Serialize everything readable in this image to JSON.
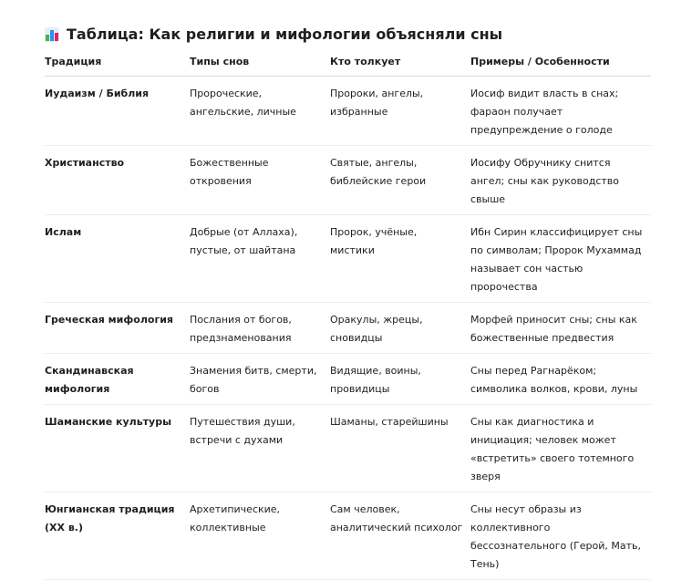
{
  "title": "Таблица: Как религии и мифологии объясняли сны",
  "title_icon": "bar-chart-icon",
  "columns": [
    "Традиция",
    "Типы снов",
    "Кто толкует",
    "Примеры / Особенности"
  ],
  "rows": [
    [
      "Иудаизм / Библия",
      "Пророческие, ангельские, личные",
      "Пророки, ангелы, избранные",
      "Иосиф видит власть в снах; фараон получает предупреждение о голоде"
    ],
    [
      "Христианство",
      "Божественные откровения",
      "Святые, ангелы, библейские герои",
      "Иосифу Обручнику снится ангел; сны как руководство свыше"
    ],
    [
      "Ислам",
      "Добрые (от Аллаха), пустые, от шайтана",
      "Пророк, учёные, мистики",
      "Ибн Сирин классифицирует сны по символам; Пророк Мухаммад называет сон частью пророчества"
    ],
    [
      "Греческая мифология",
      "Послания от богов, предзнаменования",
      "Оракулы, жрецы, сновидцы",
      "Морфей приносит сны; сны как божественные предвестия"
    ],
    [
      "Скандинавская мифология",
      "Знамения битв, смерти, богов",
      "Видящие, воины, провидицы",
      "Сны перед Рагнарёком; символика волков, крови, луны"
    ],
    [
      "Шаманские культуры",
      "Путешествия души, встречи с духами",
      "Шаманы, старейшины",
      "Сны как диагностика и инициация; человек может «встретить» своего тотемного зверя"
    ],
    [
      "Юнгианская традиция (XX в.)",
      "Архетипические, коллективные",
      "Сам человек, аналитический психолог",
      "Сны несут образы из коллективного бессознательного (Герой, Мать, Тень)"
    ]
  ]
}
